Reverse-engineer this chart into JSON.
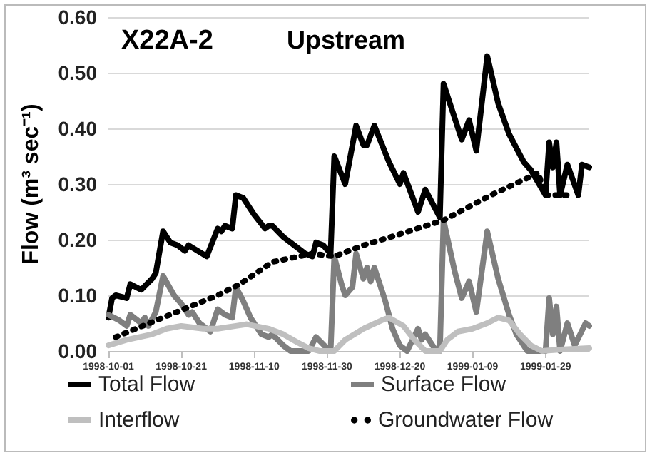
{
  "chart_data": {
    "type": "line",
    "title": "X22A-2",
    "subtitle": "Upstream",
    "ylabel": "Flow (m³ sec⁻¹)",
    "xlim": [
      "1998-10-01",
      "1999-02-10"
    ],
    "xticks": [
      "1998-10-01",
      "1998-10-21",
      "1998-11-10",
      "1998-11-30",
      "1998-12-20",
      "1999-01-09",
      "1999-01-29"
    ],
    "ylim": [
      0,
      0.6
    ],
    "yticks": [
      {
        "value": 0,
        "label": "0.00"
      },
      {
        "value": 0.1,
        "label": "0.10"
      },
      {
        "value": 0.2,
        "label": "0.20"
      },
      {
        "value": 0.3,
        "label": "0.30"
      },
      {
        "value": 0.4,
        "label": "0.40"
      },
      {
        "value": 0.5,
        "label": "0.50"
      },
      {
        "value": 0.6,
        "label": "0.60"
      }
    ],
    "grid": "y",
    "legend": "bottom",
    "marker": "none",
    "series": [
      {
        "name": "Total Flow",
        "color": "#000000",
        "line_style": "solid",
        "x": [
          "1998-10-01",
          "1998-10-02",
          "1998-10-03",
          "1998-10-06",
          "1998-10-07",
          "1998-10-10",
          "1998-10-13",
          "1998-10-14",
          "1998-10-16",
          "1998-10-18",
          "1998-10-20",
          "1998-10-22",
          "1998-10-23",
          "1998-10-28",
          "1998-10-31",
          "1998-11-01",
          "1998-11-02",
          "1998-11-04",
          "1998-11-05",
          "1998-11-07",
          "1998-11-10",
          "1998-11-13",
          "1998-11-14",
          "1998-11-15",
          "1998-11-18",
          "1998-11-21",
          "1998-11-24",
          "1998-11-26",
          "1998-11-27",
          "1998-11-29",
          "1998-12-01",
          "1998-12-02",
          "1998-12-05",
          "1998-12-08",
          "1998-12-10",
          "1998-12-11",
          "1998-12-13",
          "1998-12-17",
          "1998-12-20",
          "1998-12-21",
          "1998-12-25",
          "1998-12-27",
          "1998-12-31",
          "1999-01-01",
          "1999-01-04",
          "1999-01-06",
          "1999-01-08",
          "1999-01-10",
          "1999-01-13",
          "1999-01-16",
          "1999-01-19",
          "1999-01-23",
          "1999-01-25",
          "1999-01-29",
          "1999-01-30",
          "1999-01-31",
          "1999-02-01",
          "1999-02-02",
          "1999-02-04",
          "1999-02-07",
          "1999-02-08",
          "1999-02-10"
        ],
        "values": [
          0.06,
          0.095,
          0.1,
          0.095,
          0.12,
          0.11,
          0.13,
          0.14,
          0.215,
          0.195,
          0.19,
          0.18,
          0.19,
          0.17,
          0.22,
          0.215,
          0.225,
          0.22,
          0.28,
          0.275,
          0.245,
          0.22,
          0.225,
          0.225,
          0.205,
          0.19,
          0.175,
          0.17,
          0.195,
          0.19,
          0.175,
          0.35,
          0.3,
          0.405,
          0.37,
          0.37,
          0.405,
          0.34,
          0.3,
          0.32,
          0.25,
          0.29,
          0.24,
          0.48,
          0.42,
          0.38,
          0.415,
          0.36,
          0.53,
          0.445,
          0.39,
          0.34,
          0.325,
          0.28,
          0.375,
          0.33,
          0.375,
          0.28,
          0.335,
          0.28,
          0.335,
          0.33
        ]
      },
      {
        "name": "Surface Flow",
        "color": "#7f7f7f",
        "line_style": "solid",
        "x": [
          "1998-10-01",
          "1998-10-04",
          "1998-10-06",
          "1998-10-07",
          "1998-10-10",
          "1998-10-11",
          "1998-10-12",
          "1998-10-14",
          "1998-10-16",
          "1998-10-19",
          "1998-10-21",
          "1998-10-23",
          "1998-10-24",
          "1998-10-26",
          "1998-10-29",
          "1998-10-31",
          "1998-11-02",
          "1998-11-04",
          "1998-11-05",
          "1998-11-07",
          "1998-11-09",
          "1998-11-12",
          "1998-11-14",
          "1998-11-15",
          "1998-11-18",
          "1998-11-20",
          "1998-11-25",
          "1998-11-27",
          "1998-11-30",
          "1998-12-01",
          "1998-12-02",
          "1998-12-04",
          "1998-12-05",
          "1998-12-07",
          "1998-12-08",
          "1998-12-10",
          "1998-12-11",
          "1998-12-12",
          "1998-12-13",
          "1998-12-16",
          "1998-12-18",
          "1998-12-20",
          "1998-12-22",
          "1998-12-25",
          "1998-12-26",
          "1998-12-27",
          "1998-12-30",
          "1998-12-31",
          "1999-01-01",
          "1999-01-04",
          "1999-01-06",
          "1999-01-08",
          "1999-01-10",
          "1999-01-13",
          "1999-01-16",
          "1999-01-19",
          "1999-01-21",
          "1999-01-24",
          "1999-01-29",
          "1999-01-30",
          "1999-01-31",
          "1999-02-01",
          "1999-02-02",
          "1999-02-04",
          "1999-02-06",
          "1999-02-09",
          "1999-02-10"
        ],
        "values": [
          0.065,
          0.055,
          0.045,
          0.065,
          0.05,
          0.06,
          0.045,
          0.07,
          0.135,
          0.1,
          0.085,
          0.065,
          0.07,
          0.05,
          0.035,
          0.075,
          0.065,
          0.06,
          0.115,
          0.09,
          0.06,
          0.03,
          0.025,
          0.03,
          0.01,
          0,
          0,
          0.025,
          0.005,
          0,
          0.17,
          0.12,
          0.1,
          0.115,
          0.175,
          0.13,
          0.15,
          0.125,
          0.15,
          0.09,
          0.04,
          0.01,
          0,
          0.04,
          0.02,
          0.03,
          0,
          0,
          0.235,
          0.145,
          0.095,
          0.125,
          0.07,
          0.215,
          0.13,
          0.065,
          0.03,
          0,
          0,
          0.095,
          0.03,
          0.08,
          0,
          0.05,
          0.01,
          0.05,
          0.045
        ]
      },
      {
        "name": "Interflow",
        "color": "#bfbfbf",
        "line_style": "solid",
        "x": [
          "1998-10-01",
          "1998-10-06",
          "1998-10-13",
          "1998-10-17",
          "1998-10-21",
          "1998-10-27",
          "1998-10-31",
          "1998-11-05",
          "1998-11-08",
          "1998-11-14",
          "1998-11-18",
          "1998-11-22",
          "1998-11-25",
          "1998-11-28",
          "1998-12-02",
          "1998-12-05",
          "1998-12-10",
          "1998-12-15",
          "1998-12-17",
          "1998-12-21",
          "1998-12-24",
          "1998-12-27",
          "1998-12-31",
          "1999-01-02",
          "1999-01-05",
          "1999-01-09",
          "1999-01-13",
          "1999-01-16",
          "1999-01-19",
          "1999-01-22",
          "1999-01-25",
          "1999-01-28",
          "1999-02-03",
          "1999-02-10"
        ],
        "values": [
          0.01,
          0.02,
          0.03,
          0.04,
          0.045,
          0.04,
          0.04,
          0.045,
          0.048,
          0.04,
          0.03,
          0.015,
          0.005,
          0,
          0,
          0.02,
          0.04,
          0.055,
          0.06,
          0.045,
          0.02,
          0,
          0,
          0.02,
          0.035,
          0.04,
          0.05,
          0.06,
          0.055,
          0.03,
          0.01,
          0,
          0.003,
          0.005
        ]
      },
      {
        "name": "Groundwater Flow",
        "color": "#000000",
        "line_style": "dotted",
        "x": [
          "1998-10-03",
          "1998-10-16",
          "1998-10-31",
          "1998-11-06",
          "1998-11-15",
          "1998-11-26",
          "1998-12-02",
          "1998-12-10",
          "1998-12-20",
          "1999-01-01",
          "1999-01-14",
          "1999-01-27",
          "1999-01-29",
          "1999-02-04"
        ],
        "values": [
          0.025,
          0.06,
          0.1,
          0.12,
          0.16,
          0.175,
          0.17,
          0.19,
          0.21,
          0.235,
          0.28,
          0.32,
          0.28,
          0.28
        ]
      }
    ]
  }
}
